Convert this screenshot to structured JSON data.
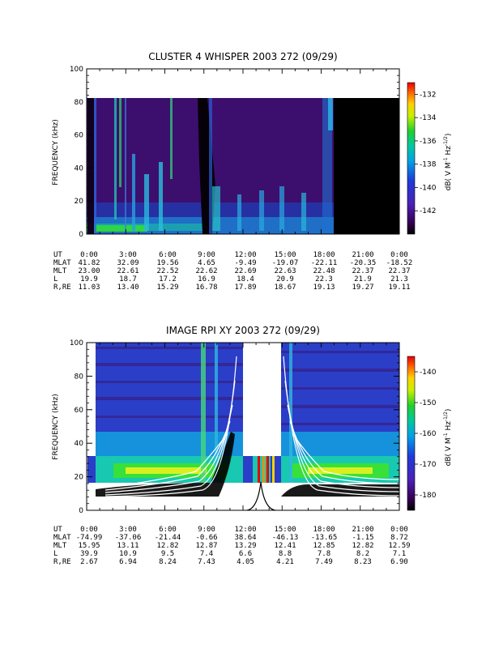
{
  "chart_data": [
    {
      "type": "heatmap",
      "title": "CLUSTER 4 WHISPER 2003 272 (09/29)",
      "ylabel": "FREQUENCY (kHz)",
      "ylim": [
        0,
        100
      ],
      "y_ticks": [
        "0",
        "20",
        "40",
        "60",
        "80",
        "100"
      ],
      "data_top_khz": 80,
      "data_end_hour": 19.3,
      "colorbar": {
        "label": "dB( V M",
        "label_sup1": "-1",
        "label_mid": " Hz",
        "label_sup2": "-1/2",
        "label_end": ")",
        "range": [
          -144,
          -131
        ],
        "ticks": [
          "-132",
          "-134",
          "-136",
          "-138",
          "-140",
          "-142"
        ]
      },
      "ephemeris": {
        "row_labels": [
          "UT",
          "MLAT",
          "MLT",
          "L",
          "R,RE"
        ],
        "rows": [
          [
            "0:00",
            "3:00",
            "6:00",
            "9:00",
            "12:00",
            "15:00",
            "18:00",
            "21:00",
            "0:00"
          ],
          [
            "41.82",
            "32.09",
            "19.56",
            "4.65",
            "-9.49",
            "-19.07",
            "-22.11",
            "-20.35",
            "-18.52"
          ],
          [
            "23.00",
            "22.61",
            "22.52",
            "22.62",
            "22.69",
            "22.63",
            "22.48",
            "22.37",
            "22.37"
          ],
          [
            "19.9",
            "18.7",
            "17.2",
            "16.9",
            "18.4",
            "20.9",
            "22.3",
            "21.9",
            "21.3"
          ],
          [
            "11.03",
            "13.40",
            "15.29",
            "16.78",
            "17.89",
            "18.67",
            "19.13",
            "19.27",
            "19.11"
          ]
        ]
      }
    },
    {
      "type": "heatmap",
      "title": "IMAGE RPI XY 2003 272 (09/29)",
      "ylabel": "FREQUENCY (kHz)",
      "ylim": [
        0,
        100
      ],
      "y_ticks": [
        "0",
        "20",
        "40",
        "60",
        "80",
        "100"
      ],
      "data_gap_hours": [
        12.0,
        14.5
      ],
      "colorbar": {
        "label": "dB( V M",
        "label_sup1": "-1",
        "label_mid": " Hz",
        "label_sup2": "-1/2",
        "label_end": ")",
        "range": [
          -185,
          -135
        ],
        "ticks": [
          "-140",
          "-150",
          "-160",
          "-170",
          "-180"
        ]
      },
      "ephemeris": {
        "row_labels": [
          "UT",
          "MLAT",
          "MLT",
          "L",
          "R,RE"
        ],
        "rows": [
          [
            "0:00",
            "3:00",
            "6:00",
            "9:00",
            "12:00",
            "15:00",
            "18:00",
            "21:00",
            "0:00"
          ],
          [
            "-74.99",
            "-37.06",
            "-21.44",
            "-0.66",
            "38.64",
            "-46.13",
            "-13.65",
            "-1.15",
            "8.72"
          ],
          [
            "15.95",
            "13.11",
            "12.82",
            "12.87",
            "13.29",
            "12.41",
            "12.85",
            "12.82",
            "12.59"
          ],
          [
            "39.9",
            "10.9",
            "9.5",
            "7.4",
            "6.6",
            "8.8",
            "7.8",
            "8.2",
            "7.1"
          ],
          [
            "2.67",
            "6.94",
            "8.24",
            "7.43",
            "4.05",
            "4.21",
            "7.49",
            "8.23",
            "6.90"
          ]
        ]
      }
    }
  ]
}
